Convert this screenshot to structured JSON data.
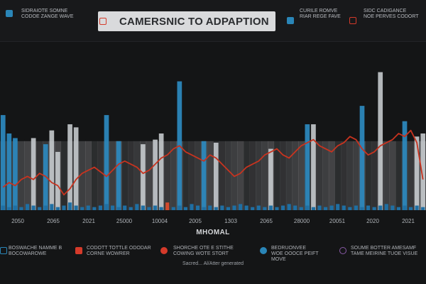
{
  "header": {
    "title": "CAMERSNIC TO ADPAPTION",
    "items": [
      {
        "line1": "SIDRAIOTE SOMNE",
        "line2": "CODOE ZANGE WAVE",
        "icon": "house-icon"
      },
      {
        "line1": "",
        "line2": "",
        "icon": "tv-icon"
      },
      {
        "line1": "CURILE ROMVE",
        "line2": "RIAR REGE FAVE",
        "icon": "phone-icon"
      },
      {
        "line1": "SIDC CADIGANCE",
        "line2": "NOE PERVES CODORT",
        "icon": "calendar-icon"
      }
    ]
  },
  "chart_data": {
    "type": "bar",
    "title": "CAMERSNIC TO ADPAPTION",
    "xlabel": "MHOMAL",
    "ylabel": "",
    "x_tick_labels": [
      "2050",
      "2065",
      "2021",
      "25000",
      "10004",
      "2005",
      "1303",
      "2065",
      "28000",
      "20051",
      "2020",
      "2021"
    ],
    "ylim": [
      0,
      100
    ],
    "grid": false,
    "series": [
      {
        "color": "#2d8ac0",
        "values": [
          62,
          50,
          47,
          0,
          0,
          0,
          0,
          43,
          0,
          0,
          0,
          0,
          0,
          0,
          0,
          0,
          0,
          62,
          0,
          45,
          0,
          0,
          0,
          0,
          0,
          0,
          0,
          0,
          0,
          84,
          0,
          0,
          0,
          45,
          0,
          0,
          0,
          0,
          0,
          0,
          0,
          0,
          0,
          0,
          0,
          0,
          0,
          0,
          0,
          0,
          56,
          0,
          0,
          0,
          0,
          0,
          0,
          0,
          0,
          68,
          0,
          0,
          0,
          0,
          0,
          0,
          58,
          0,
          0,
          0
        ]
      },
      {
        "color": "#cfd3d7",
        "values": [
          0,
          0,
          0,
          0,
          0,
          47,
          0,
          0,
          52,
          38,
          0,
          56,
          54,
          0,
          0,
          0,
          0,
          0,
          0,
          0,
          0,
          0,
          0,
          43,
          0,
          46,
          50,
          0,
          0,
          0,
          0,
          0,
          0,
          0,
          0,
          44,
          0,
          0,
          0,
          0,
          0,
          0,
          0,
          0,
          40,
          0,
          0,
          0,
          0,
          0,
          0,
          56,
          0,
          0,
          0,
          0,
          0,
          0,
          0,
          0,
          0,
          0,
          90,
          0,
          0,
          0,
          0,
          0,
          48,
          50
        ]
      },
      {
        "color": "#d8dadd",
        "values": [
          20,
          20,
          20,
          20,
          20,
          20,
          20,
          20,
          20,
          20,
          20,
          20,
          20,
          20,
          20,
          20,
          20,
          20,
          20,
          20,
          20,
          20,
          20,
          20,
          20,
          20,
          20,
          20,
          20,
          20,
          20,
          20,
          20,
          20,
          20,
          20,
          20,
          20,
          20,
          20,
          20,
          20,
          20,
          20,
          20,
          20,
          20,
          20,
          20,
          20,
          20,
          20,
          20,
          20,
          20,
          20,
          20,
          20,
          20,
          20,
          20,
          20,
          20,
          20,
          20,
          20,
          20,
          20,
          20,
          20
        ]
      },
      {
        "color": "#c8331f",
        "type": "line",
        "values": [
          15,
          18,
          16,
          20,
          22,
          20,
          24,
          22,
          18,
          16,
          10,
          14,
          20,
          24,
          26,
          28,
          25,
          22,
          26,
          30,
          32,
          30,
          28,
          24,
          26,
          30,
          34,
          36,
          40,
          42,
          38,
          36,
          34,
          32,
          36,
          34,
          30,
          26,
          22,
          24,
          28,
          30,
          32,
          36,
          38,
          40,
          36,
          34,
          38,
          42,
          44,
          46,
          42,
          40,
          38,
          42,
          44,
          48,
          46,
          40,
          36,
          38,
          42,
          44,
          46,
          50,
          48,
          52,
          44,
          20
        ]
      },
      {
        "color": "#1f6fa3",
        "type": "baseline",
        "values": [
          3,
          2,
          3,
          2,
          4,
          3,
          2,
          3,
          4,
          2,
          3,
          5,
          3,
          2,
          3,
          2,
          3,
          4,
          3,
          2,
          3,
          2,
          4,
          3,
          2,
          3,
          2,
          3,
          2,
          3,
          2,
          4,
          3,
          2,
          3,
          2,
          3,
          2,
          3,
          4,
          3,
          2,
          3,
          2,
          3,
          2,
          3,
          4,
          3,
          2,
          3,
          2,
          3,
          2,
          3,
          4,
          3,
          2,
          3,
          2,
          3,
          2,
          3,
          4,
          3,
          2,
          3,
          2,
          3,
          2
        ]
      },
      {
        "color": "#d24a2c",
        "type": "baseline",
        "values": [
          0,
          0,
          0,
          0,
          0,
          0,
          0,
          0,
          0,
          0,
          0,
          0,
          0,
          0,
          0,
          0,
          0,
          0,
          0,
          0,
          0,
          0,
          0,
          0,
          0,
          0,
          0,
          5,
          0,
          0,
          0,
          0,
          0,
          0,
          0,
          0,
          0,
          0,
          0,
          0,
          0,
          0,
          0,
          0,
          0,
          0,
          0,
          0,
          0,
          0,
          0,
          0,
          0,
          0,
          0,
          0,
          0,
          0,
          0,
          0,
          0,
          0,
          0,
          0,
          0,
          0,
          0,
          0,
          0,
          0
        ]
      }
    ]
  },
  "legend": [
    {
      "line1": "BOSWACHE NAMME B",
      "line2": "BOCOWAROWE",
      "icon": "bar-chart-icon",
      "color": "#2a86b8"
    },
    {
      "line1": "CODOTT TOTTLE ODODAR",
      "line2": "CORNE WOWRER",
      "icon": "tv-icon",
      "color": "#d53a2a"
    },
    {
      "line1": "SHORCHE OTE E STITHE",
      "line2": "COWING WOTE STORT",
      "icon": "rocket-icon",
      "color": "#d53a2a"
    },
    {
      "line1": "BEDRUONVEE",
      "line2": "WOE OOOCE PEIFT",
      "line3": "MOVE",
      "icon": "circle-icon",
      "color": "#2a86b8"
    },
    {
      "line1": "SOUME BOTTER AMESAMF",
      "line2": "TAME MEIRINE TUOE VISUE",
      "icon": "ring-icon",
      "color": "#8a5aa8"
    }
  ],
  "footer": "Sacred... Al/Atter generated"
}
